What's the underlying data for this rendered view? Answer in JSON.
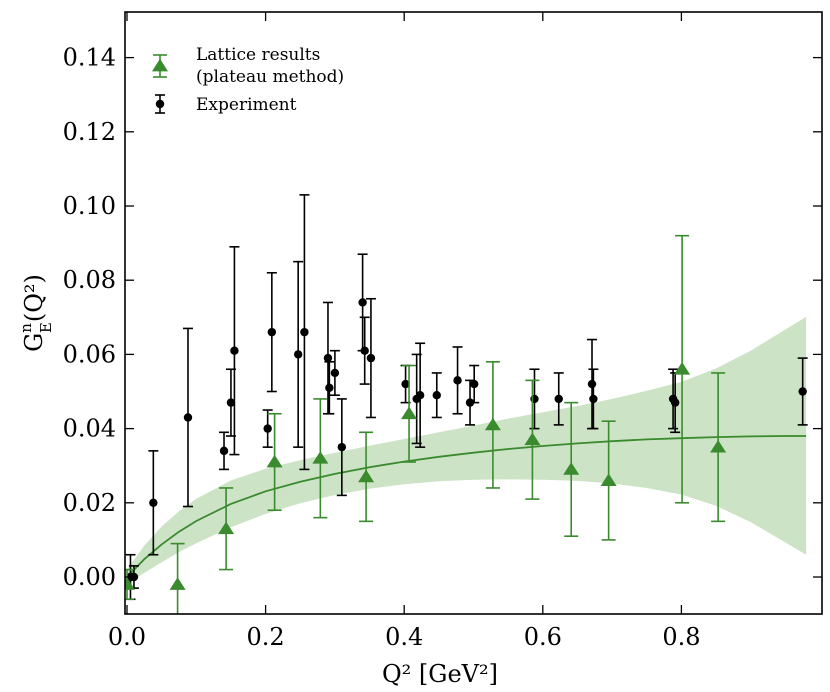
{
  "chart_data": {
    "type": "scatter",
    "title": "",
    "xlabel": "Q² [GeV²]",
    "ylabel": {
      "base": "G",
      "sup": "n",
      "sub": "E",
      "arg": "(Q²)"
    },
    "xlim": [
      0.0,
      0.98
    ],
    "ylim": [
      -0.01,
      0.15
    ],
    "xticks": [
      0.0,
      0.2,
      0.4,
      0.6,
      0.8
    ],
    "xtick_labels": [
      "0.0",
      "0.2",
      "0.4",
      "0.6",
      "0.8"
    ],
    "yticks": [
      0.0,
      0.02,
      0.04,
      0.06,
      0.08,
      0.1,
      0.12,
      0.14
    ],
    "ytick_labels": [
      "0.00",
      "0.02",
      "0.04",
      "0.06",
      "0.08",
      "0.10",
      "0.12",
      "0.14"
    ],
    "grid": false,
    "legend_position": "top-left",
    "colors": {
      "lattice": "#3a8a2e",
      "band": "#cde3c6",
      "experiment": "#000000"
    },
    "legend": [
      {
        "key": "lattice",
        "line1": "Lattice results",
        "line2": "(plateau method)"
      },
      {
        "key": "experiment",
        "line1": "Experiment",
        "line2": ""
      }
    ],
    "series": [
      {
        "name": "Lattice results (plateau method)",
        "marker": "triangle",
        "points": [
          {
            "x": 0.0,
            "y": -0.002,
            "err": 0.004
          },
          {
            "x": 0.073,
            "y": -0.002,
            "err": 0.011
          },
          {
            "x": 0.143,
            "y": 0.013,
            "err": 0.011
          },
          {
            "x": 0.213,
            "y": 0.031,
            "err": 0.013
          },
          {
            "x": 0.279,
            "y": 0.032,
            "err": 0.016
          },
          {
            "x": 0.345,
            "y": 0.027,
            "err": 0.012
          },
          {
            "x": 0.407,
            "y": 0.044,
            "err": 0.013
          },
          {
            "x": 0.528,
            "y": 0.041,
            "err": 0.017
          },
          {
            "x": 0.585,
            "y": 0.037,
            "err": 0.016
          },
          {
            "x": 0.641,
            "y": 0.029,
            "err": 0.018
          },
          {
            "x": 0.695,
            "y": 0.026,
            "err": 0.016
          },
          {
            "x": 0.801,
            "y": 0.056,
            "err": 0.036
          },
          {
            "x": 0.853,
            "y": 0.035,
            "err": 0.02
          }
        ]
      },
      {
        "name": "Experiment",
        "marker": "circle",
        "points": [
          {
            "x": 0.005,
            "y": 0.0,
            "err": 0.006
          },
          {
            "x": 0.01,
            "y": 0.0,
            "err": 0.003
          },
          {
            "x": 0.038,
            "y": 0.02,
            "err": 0.014
          },
          {
            "x": 0.088,
            "y": 0.043,
            "err": 0.024
          },
          {
            "x": 0.14,
            "y": 0.034,
            "err": 0.005
          },
          {
            "x": 0.15,
            "y": 0.047,
            "err": 0.009
          },
          {
            "x": 0.155,
            "y": 0.061,
            "err": 0.028
          },
          {
            "x": 0.203,
            "y": 0.04,
            "err": 0.005
          },
          {
            "x": 0.209,
            "y": 0.066,
            "err": 0.016
          },
          {
            "x": 0.247,
            "y": 0.06,
            "err": 0.025
          },
          {
            "x": 0.256,
            "y": 0.066,
            "err": 0.037
          },
          {
            "x": 0.29,
            "y": 0.059,
            "err": 0.015
          },
          {
            "x": 0.292,
            "y": 0.051,
            "err": 0.007
          },
          {
            "x": 0.3,
            "y": 0.055,
            "err": 0.006
          },
          {
            "x": 0.31,
            "y": 0.035,
            "err": 0.013
          },
          {
            "x": 0.34,
            "y": 0.074,
            "err": 0.013
          },
          {
            "x": 0.343,
            "y": 0.061,
            "err": 0.009
          },
          {
            "x": 0.352,
            "y": 0.059,
            "err": 0.016
          },
          {
            "x": 0.402,
            "y": 0.052,
            "err": 0.005
          },
          {
            "x": 0.418,
            "y": 0.048,
            "err": 0.012
          },
          {
            "x": 0.423,
            "y": 0.049,
            "err": 0.014
          },
          {
            "x": 0.447,
            "y": 0.049,
            "err": 0.006
          },
          {
            "x": 0.477,
            "y": 0.053,
            "err": 0.009
          },
          {
            "x": 0.495,
            "y": 0.047,
            "err": 0.006
          },
          {
            "x": 0.501,
            "y": 0.052,
            "err": 0.005
          },
          {
            "x": 0.588,
            "y": 0.048,
            "err": 0.008
          },
          {
            "x": 0.623,
            "y": 0.048,
            "err": 0.007
          },
          {
            "x": 0.671,
            "y": 0.052,
            "err": 0.012
          },
          {
            "x": 0.673,
            "y": 0.048,
            "err": 0.008
          },
          {
            "x": 0.788,
            "y": 0.048,
            "err": 0.008
          },
          {
            "x": 0.791,
            "y": 0.047,
            "err": 0.008
          },
          {
            "x": 0.975,
            "y": 0.05,
            "err": 0.009
          }
        ]
      }
    ],
    "fit": {
      "name": "Fit",
      "x": [
        0.0,
        0.025,
        0.05,
        0.075,
        0.1,
        0.15,
        0.2,
        0.25,
        0.3,
        0.35,
        0.4,
        0.45,
        0.5,
        0.55,
        0.6,
        0.65,
        0.7,
        0.75,
        0.8,
        0.85,
        0.9,
        0.95,
        0.98
      ],
      "y": [
        0.0,
        0.0048,
        0.0088,
        0.0122,
        0.0151,
        0.0197,
        0.0231,
        0.0257,
        0.0278,
        0.0296,
        0.0311,
        0.0324,
        0.0335,
        0.0345,
        0.0353,
        0.036,
        0.0366,
        0.0371,
        0.0374,
        0.0377,
        0.0379,
        0.038,
        0.038
      ],
      "lower": [
        -0.002,
        0.0011,
        0.004,
        0.0067,
        0.0091,
        0.0134,
        0.017,
        0.0199,
        0.0221,
        0.0238,
        0.025,
        0.0258,
        0.0262,
        0.0263,
        0.0262,
        0.0259,
        0.0252,
        0.024,
        0.0222,
        0.0192,
        0.0148,
        0.0093,
        0.006
      ],
      "upper": [
        0.002,
        0.0085,
        0.0136,
        0.0177,
        0.0211,
        0.026,
        0.0292,
        0.0315,
        0.0335,
        0.0354,
        0.0372,
        0.039,
        0.0408,
        0.0427,
        0.0444,
        0.0461,
        0.048,
        0.0502,
        0.0526,
        0.0562,
        0.061,
        0.0667,
        0.0701
      ]
    }
  }
}
